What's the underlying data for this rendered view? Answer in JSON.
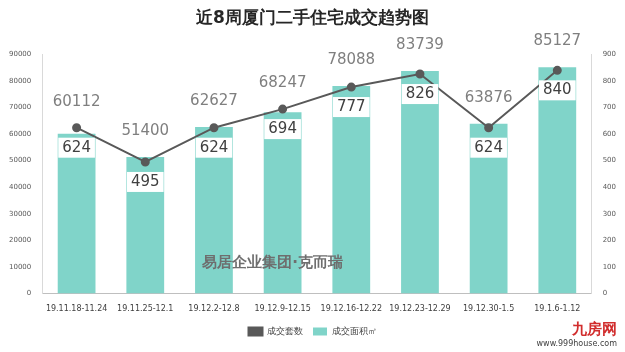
{
  "chart_data": {
    "type": "bar",
    "title": "近8周厦门二手住宅成交趋势图",
    "categories": [
      "19.11.18-11.24",
      "19.11.25-12.1",
      "19.12.2-12.8",
      "19.12.9-12.15",
      "19.12.16-12.22",
      "19.12.23-12.29",
      "19.12.30-1.5",
      "19.1.6-1.12"
    ],
    "series": [
      {
        "name": "成交面积㎡",
        "type": "bar",
        "color": "#80d4c9",
        "values": [
          60112,
          51400,
          62627,
          68247,
          78088,
          83739,
          63876,
          85127
        ]
      },
      {
        "name": "成交套数",
        "type": "line",
        "color": "#595959",
        "marker": "circle",
        "axis": "y2",
        "values": [
          624,
          495,
          624,
          694,
          777,
          826,
          624,
          840
        ]
      }
    ],
    "ylim": [
      0,
      90000
    ],
    "yticks": [
      0,
      10000,
      20000,
      30000,
      40000,
      50000,
      60000,
      70000,
      80000,
      90000
    ],
    "y2lim": [
      0,
      900
    ],
    "y2ticks": [
      0,
      100,
      200,
      300,
      400,
      500,
      600,
      700,
      800,
      900
    ],
    "grid": false,
    "legend": "bottom",
    "data_labels": true,
    "annotations": [
      "易居企业集团·克而瑞",
      "九房网",
      "www.999house.com"
    ]
  }
}
